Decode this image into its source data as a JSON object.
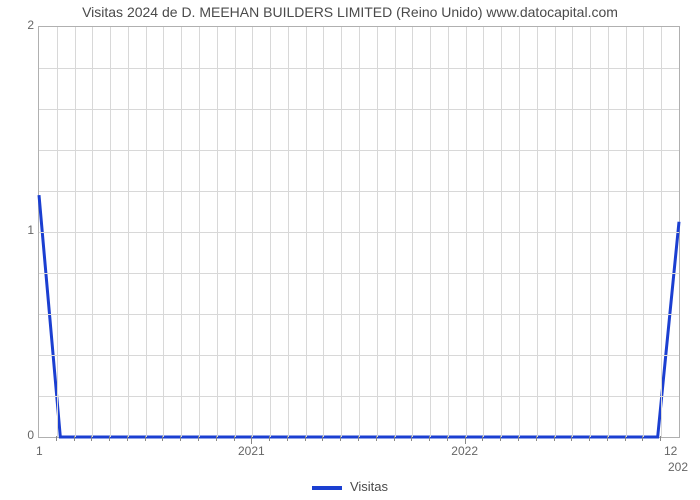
{
  "chart": {
    "type": "line",
    "title": "Visitas 2024 de D. MEEHAN BUILDERS LIMITED (Reino Unido) www.datocapital.com",
    "title_fontsize": 14,
    "title_color": "#4a4a4a",
    "background_color": "#ffffff",
    "plot_border_color": "#b0b0b0",
    "grid_color": "#d8d8d8",
    "axis_label_color": "#666666",
    "axis_label_fontsize": 12,
    "y": {
      "min": 0,
      "max": 2,
      "ticks": [
        0,
        1,
        2
      ],
      "minor_count_between": 4
    },
    "x": {
      "domain_min": 2020.0,
      "domain_max": 2023.0,
      "left_corner_label": "1",
      "right_corner_label": "12",
      "major_ticks": [
        2021,
        2022
      ],
      "major_tick_labels": [
        "2021",
        "2022"
      ],
      "label_minor": "202",
      "major_count": 3,
      "minor_per_major": 12
    },
    "series": {
      "color": "#1b3fd1",
      "line_width": 3,
      "points": [
        {
          "x": 2020.0,
          "y": 1.18
        },
        {
          "x": 2020.1,
          "y": 0.0
        },
        {
          "x": 2022.9,
          "y": 0.0
        },
        {
          "x": 2023.0,
          "y": 1.05
        }
      ]
    },
    "legend": {
      "label": "Visitas",
      "swatch_color": "#1b3fd1",
      "text_color": "#4a4a4a",
      "fontsize": 13
    }
  }
}
